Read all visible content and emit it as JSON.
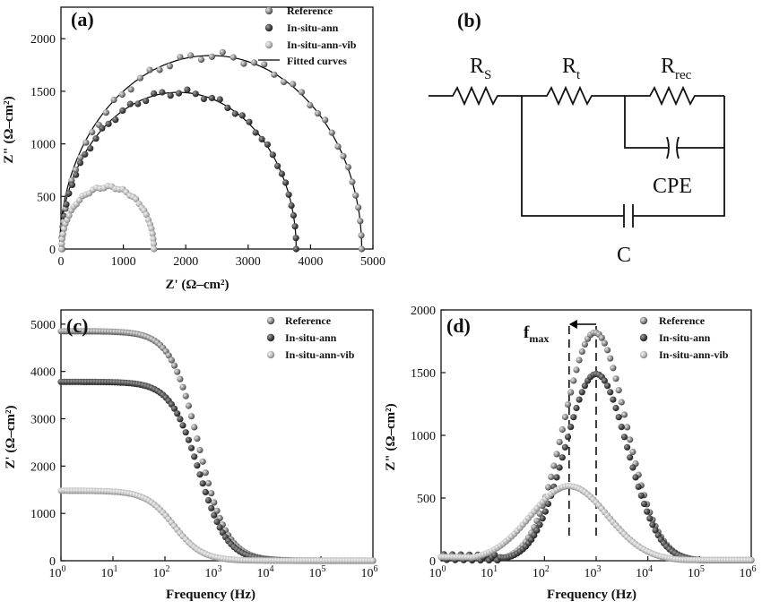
{
  "colors": {
    "reference": "#8c8c8c",
    "in_situ_ann": "#4a4a4a",
    "in_situ_ann_vib": "#bdbdbd",
    "fit": "#000000",
    "axis": "#111111"
  },
  "panel_b": {
    "label": "(b)",
    "r_s_main": "R",
    "r_s_sub": "S",
    "r_t_main": "R",
    "r_t_sub": "t",
    "r_rec_main": "R",
    "r_rec_sub": "rec",
    "cpe": "CPE",
    "c": "C"
  },
  "chart_data": [
    {
      "id": "a",
      "type": "scatter",
      "panel_label": "(a)",
      "xlabel": "Z' (Ω–cm²)",
      "ylabel": "Z\" (Ω–cm²)",
      "xlim": [
        0,
        5000
      ],
      "ylim": [
        0,
        2300
      ],
      "xticks": [
        "0",
        "1000",
        "2000",
        "3000",
        "4000",
        "5000"
      ],
      "yticks": [
        "0",
        "500",
        "1000",
        "1500",
        "2000"
      ],
      "legend": [
        "Reference",
        "In-situ-ann",
        "In-situ-ann-vib",
        "Fitted curves"
      ],
      "series": [
        {
          "name": "Reference",
          "center": 2420,
          "radius": 2400,
          "depression": 0.76
        },
        {
          "name": "In-situ-ann",
          "center": 1890,
          "radius": 1880,
          "depression": 0.79
        },
        {
          "name": "In-situ-ann-vib",
          "center": 750,
          "radius": 740,
          "depression": 0.81
        }
      ],
      "fitted": [
        {
          "center": 2400,
          "radius": 2420,
          "peak": 1840
        },
        {
          "center": 1880,
          "radius": 1890,
          "peak": 1490
        },
        {
          "center": 740,
          "radius": 750,
          "peak": 590
        }
      ]
    },
    {
      "id": "c",
      "type": "scatter",
      "panel_label": "(c)",
      "xlabel": "Frequency (Hz)",
      "ylabel": "Z' (Ω–cm²)",
      "xscale": "log",
      "xlim": [
        1,
        1000000
      ],
      "ylim": [
        0,
        5300
      ],
      "xticks_base": [
        "10",
        "10",
        "10",
        "10",
        "10",
        "10",
        "10"
      ],
      "xticks_exp": [
        "0",
        "1",
        "2",
        "3",
        "4",
        "5",
        "6"
      ],
      "yticks": [
        "0",
        "1000",
        "2000",
        "3000",
        "4000",
        "5000"
      ],
      "legend": [
        "Reference",
        "In-situ-ann",
        "In-situ-ann-vib"
      ],
      "series": [
        {
          "name": "Reference",
          "plateau": 4850,
          "fc": 450
        },
        {
          "name": "In-situ-ann",
          "plateau": 3780,
          "fc": 450
        },
        {
          "name": "In-situ-ann-vib",
          "plateau": 1480,
          "fc": 450
        }
      ]
    },
    {
      "id": "d",
      "type": "scatter",
      "panel_label": "(d)",
      "xlabel": "Frequency (Hz)",
      "ylabel": "Z\" (Ω–cm²)",
      "xscale": "log",
      "xlim": [
        1,
        1000000
      ],
      "ylim": [
        0,
        2000
      ],
      "xticks_base": [
        "10",
        "10",
        "10",
        "10",
        "10",
        "10",
        "10"
      ],
      "xticks_exp": [
        "0",
        "1",
        "2",
        "3",
        "4",
        "5",
        "6"
      ],
      "yticks": [
        "0",
        "500",
        "1000",
        "1500",
        "2000"
      ],
      "legend": [
        "Reference",
        "In-situ-ann",
        "In-situ-ann-vib"
      ],
      "annotation_main": "f",
      "annotation_sub": "max",
      "fmax_lines_hz": [
        300,
        1000
      ],
      "series": [
        {
          "name": "Reference",
          "peak_freq": 950,
          "peak": 1820
        },
        {
          "name": "In-situ-ann",
          "peak_freq": 1000,
          "peak": 1490
        },
        {
          "name": "In-situ-ann-vib",
          "peak_freq": 300,
          "peak": 595
        }
      ]
    }
  ]
}
